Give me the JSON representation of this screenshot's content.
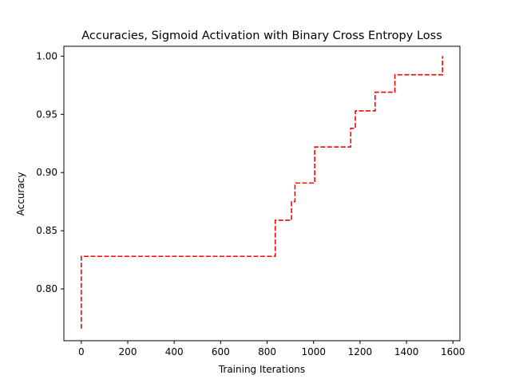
{
  "chart_data": {
    "type": "line",
    "title": "Accuracies, Sigmoid Activation with Binary Cross Entropy Loss",
    "xlabel": "Training Iterations",
    "ylabel": "Accuracy",
    "xlim": [
      -75,
      1630
    ],
    "ylim": [
      0.7555,
      1.0085
    ],
    "xticks": [
      0,
      200,
      400,
      600,
      800,
      1000,
      1200,
      1400,
      1600
    ],
    "xtick_labels": [
      "0",
      "200",
      "400",
      "600",
      "800",
      "1000",
      "1200",
      "1400",
      "1600"
    ],
    "yticks": [
      0.8,
      0.85,
      0.9,
      0.95,
      1.0
    ],
    "ytick_labels": [
      "0.80",
      "0.85",
      "0.90",
      "0.95",
      "1.00"
    ],
    "grid": false,
    "series": [
      {
        "name": "accuracy",
        "color": "#ff0000",
        "linestyle": "dashed",
        "x": [
          0,
          0,
          5,
          5,
          835,
          835,
          905,
          905,
          920,
          920,
          1005,
          1005,
          1160,
          1160,
          1180,
          1180,
          1265,
          1265,
          1350,
          1350,
          1555,
          1555
        ],
        "y": [
          0.766,
          0.828,
          0.828,
          0.828,
          0.828,
          0.859,
          0.859,
          0.875,
          0.875,
          0.891,
          0.891,
          0.922,
          0.922,
          0.938,
          0.938,
          0.953,
          0.953,
          0.969,
          0.969,
          0.984,
          0.984,
          1.0
        ]
      }
    ]
  }
}
